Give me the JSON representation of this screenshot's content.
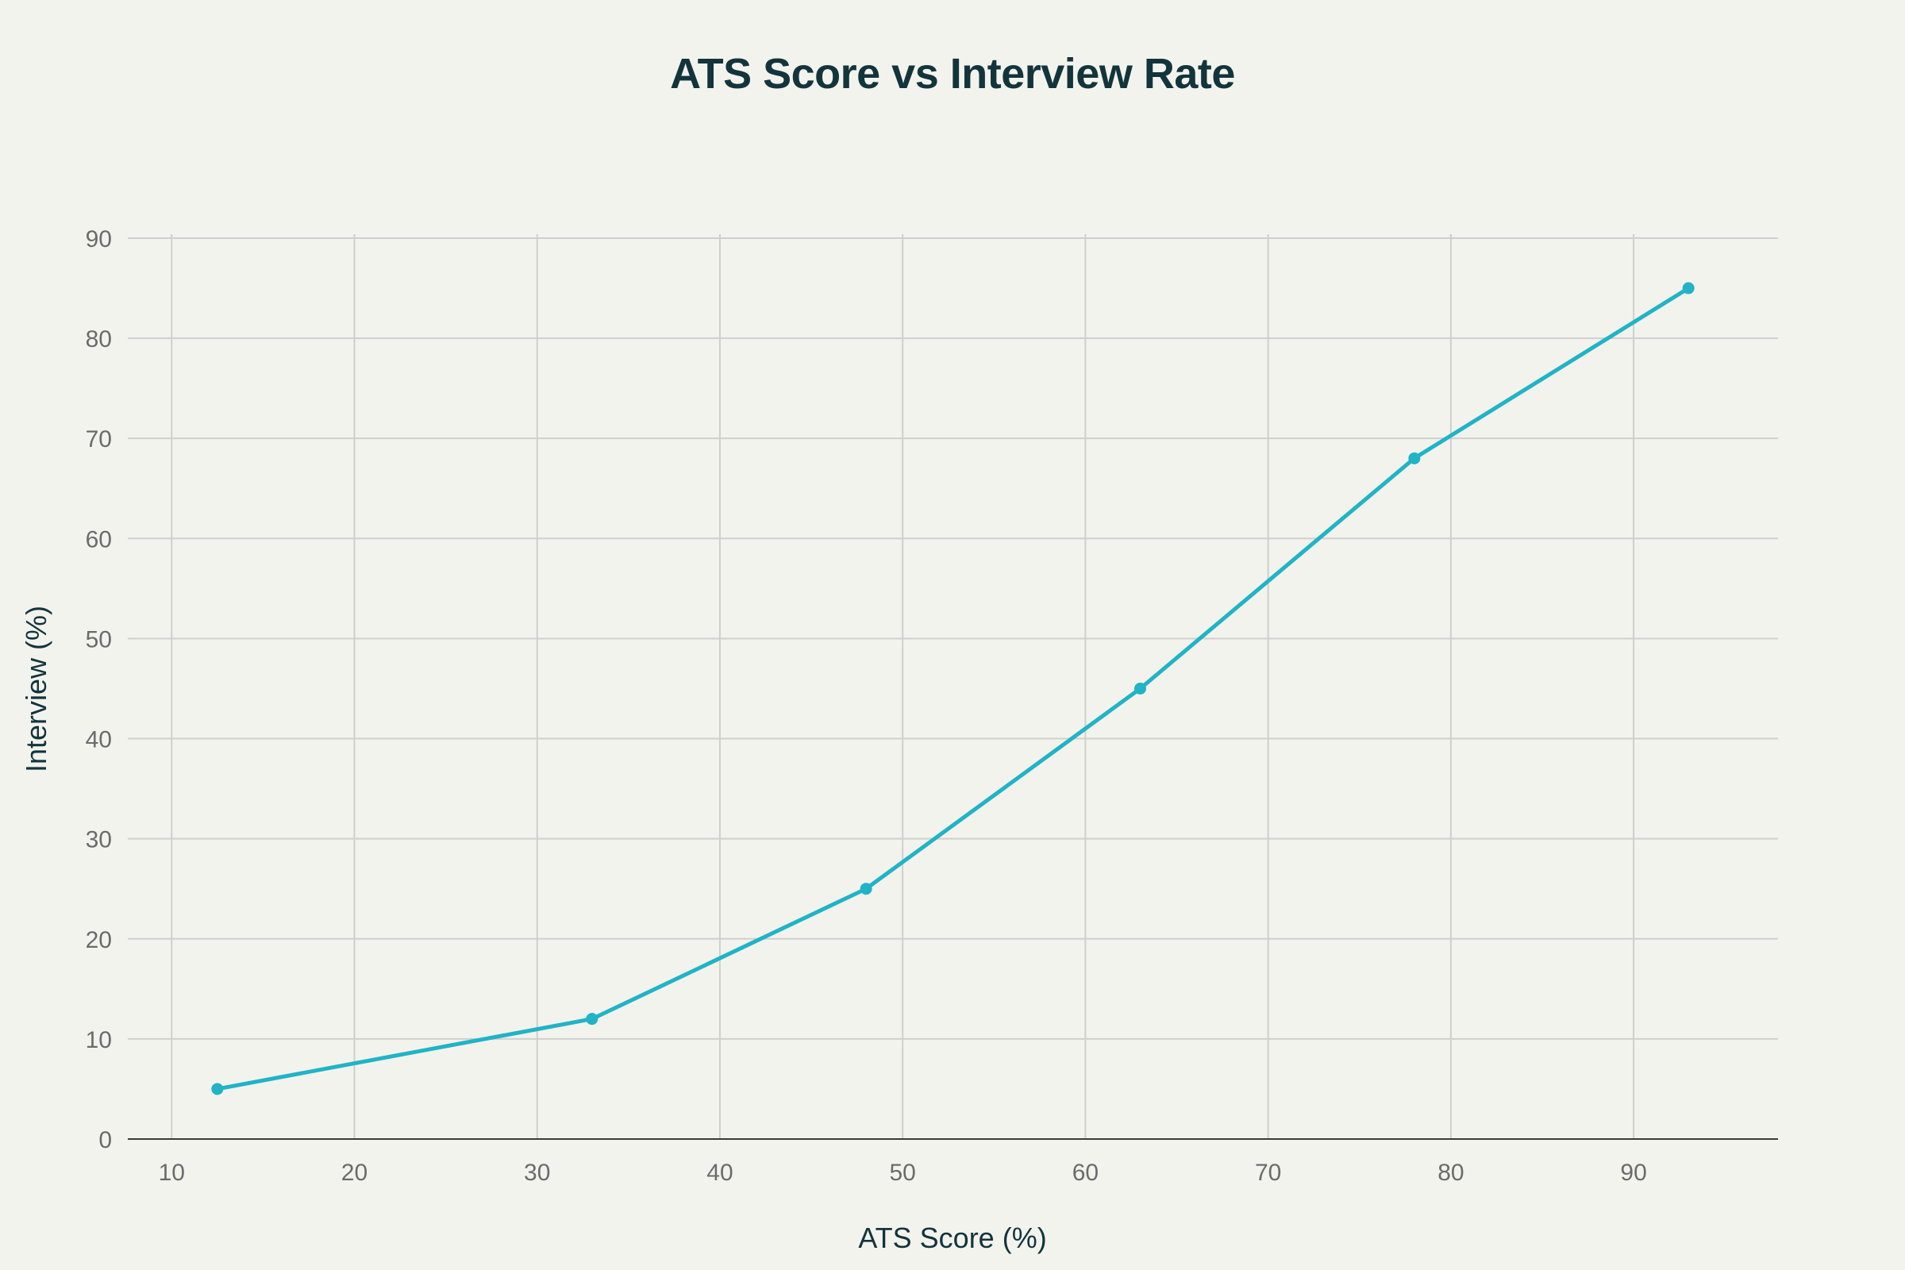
{
  "chart_data": {
    "type": "line",
    "title": "ATS Score vs Interview Rate",
    "xlabel": "ATS Score (%)",
    "ylabel": "Interview (%)",
    "xlim": [
      7.6,
      97.9
    ],
    "ylim": [
      0,
      90
    ],
    "xticks": [
      10,
      20,
      30,
      40,
      50,
      60,
      70,
      80,
      90
    ],
    "yticks": [
      0,
      10,
      20,
      30,
      40,
      50,
      60,
      70,
      80,
      90
    ],
    "grid": true,
    "legend": "none",
    "series": [
      {
        "color": "#21b3c6",
        "x": [
          12.5,
          33,
          48,
          63,
          78,
          93
        ],
        "y": [
          5,
          12,
          25,
          45,
          68,
          85
        ]
      }
    ]
  }
}
